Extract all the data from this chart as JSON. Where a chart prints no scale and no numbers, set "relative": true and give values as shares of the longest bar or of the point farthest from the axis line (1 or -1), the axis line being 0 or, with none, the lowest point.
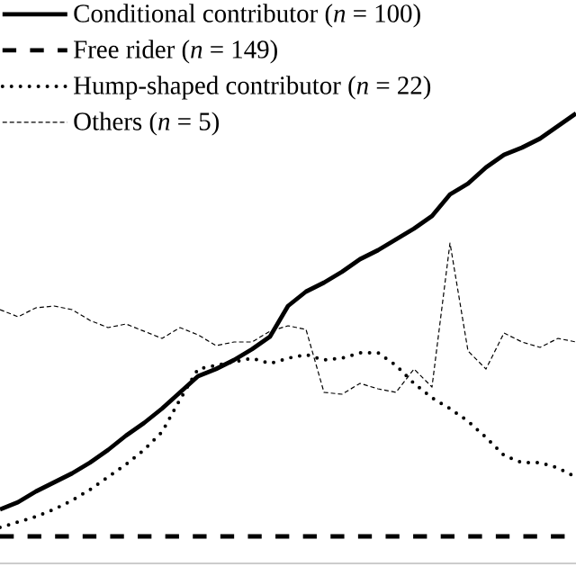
{
  "chart_data": {
    "type": "line",
    "relative": true,
    "legend": "top left",
    "categories": [
      null,
      null,
      null,
      null,
      null,
      null,
      null,
      null,
      null,
      null,
      null,
      null,
      null,
      null,
      null,
      null,
      null,
      null,
      null,
      null,
      null,
      null,
      null,
      null,
      null,
      null,
      null,
      null,
      null,
      null,
      null,
      null,
      null
    ],
    "series": [
      {
        "name": "Conditional contributor (*n* = 100)",
        "color": "#000000",
        "line_style": "solid",
        "values": [
          0.12,
          0.136,
          0.16,
          0.18,
          0.2,
          0.224,
          0.252,
          0.284,
          0.312,
          0.344,
          0.38,
          0.416,
          0.432,
          0.452,
          0.476,
          0.504,
          0.572,
          0.604,
          0.624,
          0.648,
          0.676,
          0.696,
          0.72,
          0.744,
          0.772,
          0.82,
          0.844,
          0.88,
          0.908,
          0.924,
          0.944,
          0.972,
          1
        ]
      },
      {
        "name": "Free rider (*n* = 149)",
        "color": "#000000",
        "line_style": "dashed",
        "values": [
          0.06,
          0.06,
          0.06,
          0.06,
          0.06,
          0.06,
          0.06,
          0.06,
          0.06,
          0.06,
          0.06,
          0.06,
          0.06,
          0.06,
          0.06,
          0.06,
          0.06,
          0.06,
          0.06,
          0.06,
          0.06,
          0.06,
          0.06,
          0.06,
          0.06,
          0.06,
          0.06,
          0.06,
          0.06,
          0.06,
          0.06,
          0.06,
          0.06
        ]
      },
      {
        "name": "Hump-shaped contributor (*n* = 22)",
        "color": "#000000",
        "line_style": "dotted",
        "values": [
          0.08,
          0.092,
          0.104,
          0.12,
          0.14,
          0.164,
          0.192,
          0.22,
          0.252,
          0.292,
          0.364,
          0.432,
          0.44,
          0.448,
          0.456,
          0.444,
          0.456,
          0.464,
          0.452,
          0.456,
          0.468,
          0.468,
          0.44,
          0.4,
          0.368,
          0.344,
          0.316,
          0.28,
          0.24,
          0.224,
          0.224,
          0.212,
          0.192
        ]
      },
      {
        "name": "Others (*n* = 5)",
        "color": "#000000",
        "line_style": "dashed",
        "values": [
          0.564,
          0.548,
          0.568,
          0.572,
          0.564,
          0.54,
          0.524,
          0.532,
          0.516,
          0.5,
          0.524,
          0.508,
          0.484,
          0.492,
          0.492,
          0.516,
          0.528,
          0.52,
          0.38,
          0.376,
          0.4,
          0.388,
          0.38,
          0.432,
          0.392,
          0.712,
          0.472,
          0.432,
          0.512,
          0.492,
          0.48,
          0.5,
          0.492
        ]
      }
    ]
  }
}
